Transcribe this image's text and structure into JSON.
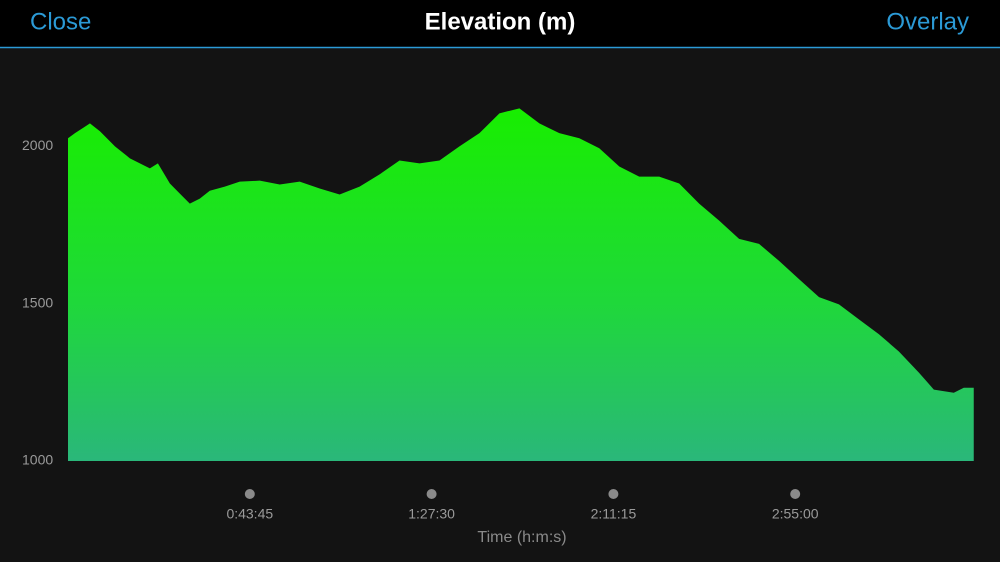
{
  "header": {
    "close": "Close",
    "title": "Elevation (m)",
    "overlay": "Overlay"
  },
  "chart_data": {
    "type": "area",
    "x_label": "Time (h:m:s)",
    "x": [
      0,
      101,
      317,
      461,
      678,
      894,
      1182,
      1298,
      1471,
      1615,
      1759,
      1903,
      2047,
      2264,
      2480,
      2769,
      3057,
      3345,
      3634,
      3922,
      4210,
      4499,
      4787,
      5076,
      5364,
      5652,
      5941,
      6229,
      6518,
      6806,
      7094,
      7383,
      7671,
      7960,
      8248,
      8536,
      8825,
      9113,
      9402,
      9690,
      9978,
      10267,
      10555,
      10844,
      11132,
      11420,
      11709,
      11997,
      12286,
      12502,
      12790,
      12934,
      13078
    ],
    "values": [
      2026,
      2042,
      2073,
      2048,
      2000,
      1962,
      1930,
      1946,
      1882,
      1850,
      1818,
      1834,
      1859,
      1872,
      1888,
      1891,
      1879,
      1888,
      1866,
      1847,
      1872,
      1911,
      1955,
      1946,
      1955,
      2000,
      2042,
      2105,
      2121,
      2073,
      2042,
      2026,
      1994,
      1936,
      1904,
      1904,
      1882,
      1818,
      1764,
      1706,
      1690,
      1636,
      1578,
      1521,
      1498,
      1450,
      1403,
      1348,
      1281,
      1227,
      1217,
      1233,
      1233
    ],
    "xlim": [
      0,
      13125
    ],
    "xticks": [
      {
        "value": 2625,
        "label": "0:43:45"
      },
      {
        "value": 5250,
        "label": "1:27:30"
      },
      {
        "value": 7875,
        "label": "2:11:15"
      },
      {
        "value": 10500,
        "label": "2:55:00"
      }
    ],
    "ylim": [
      1000,
      2300
    ],
    "yticks": [
      1000,
      1500,
      2000
    ]
  }
}
